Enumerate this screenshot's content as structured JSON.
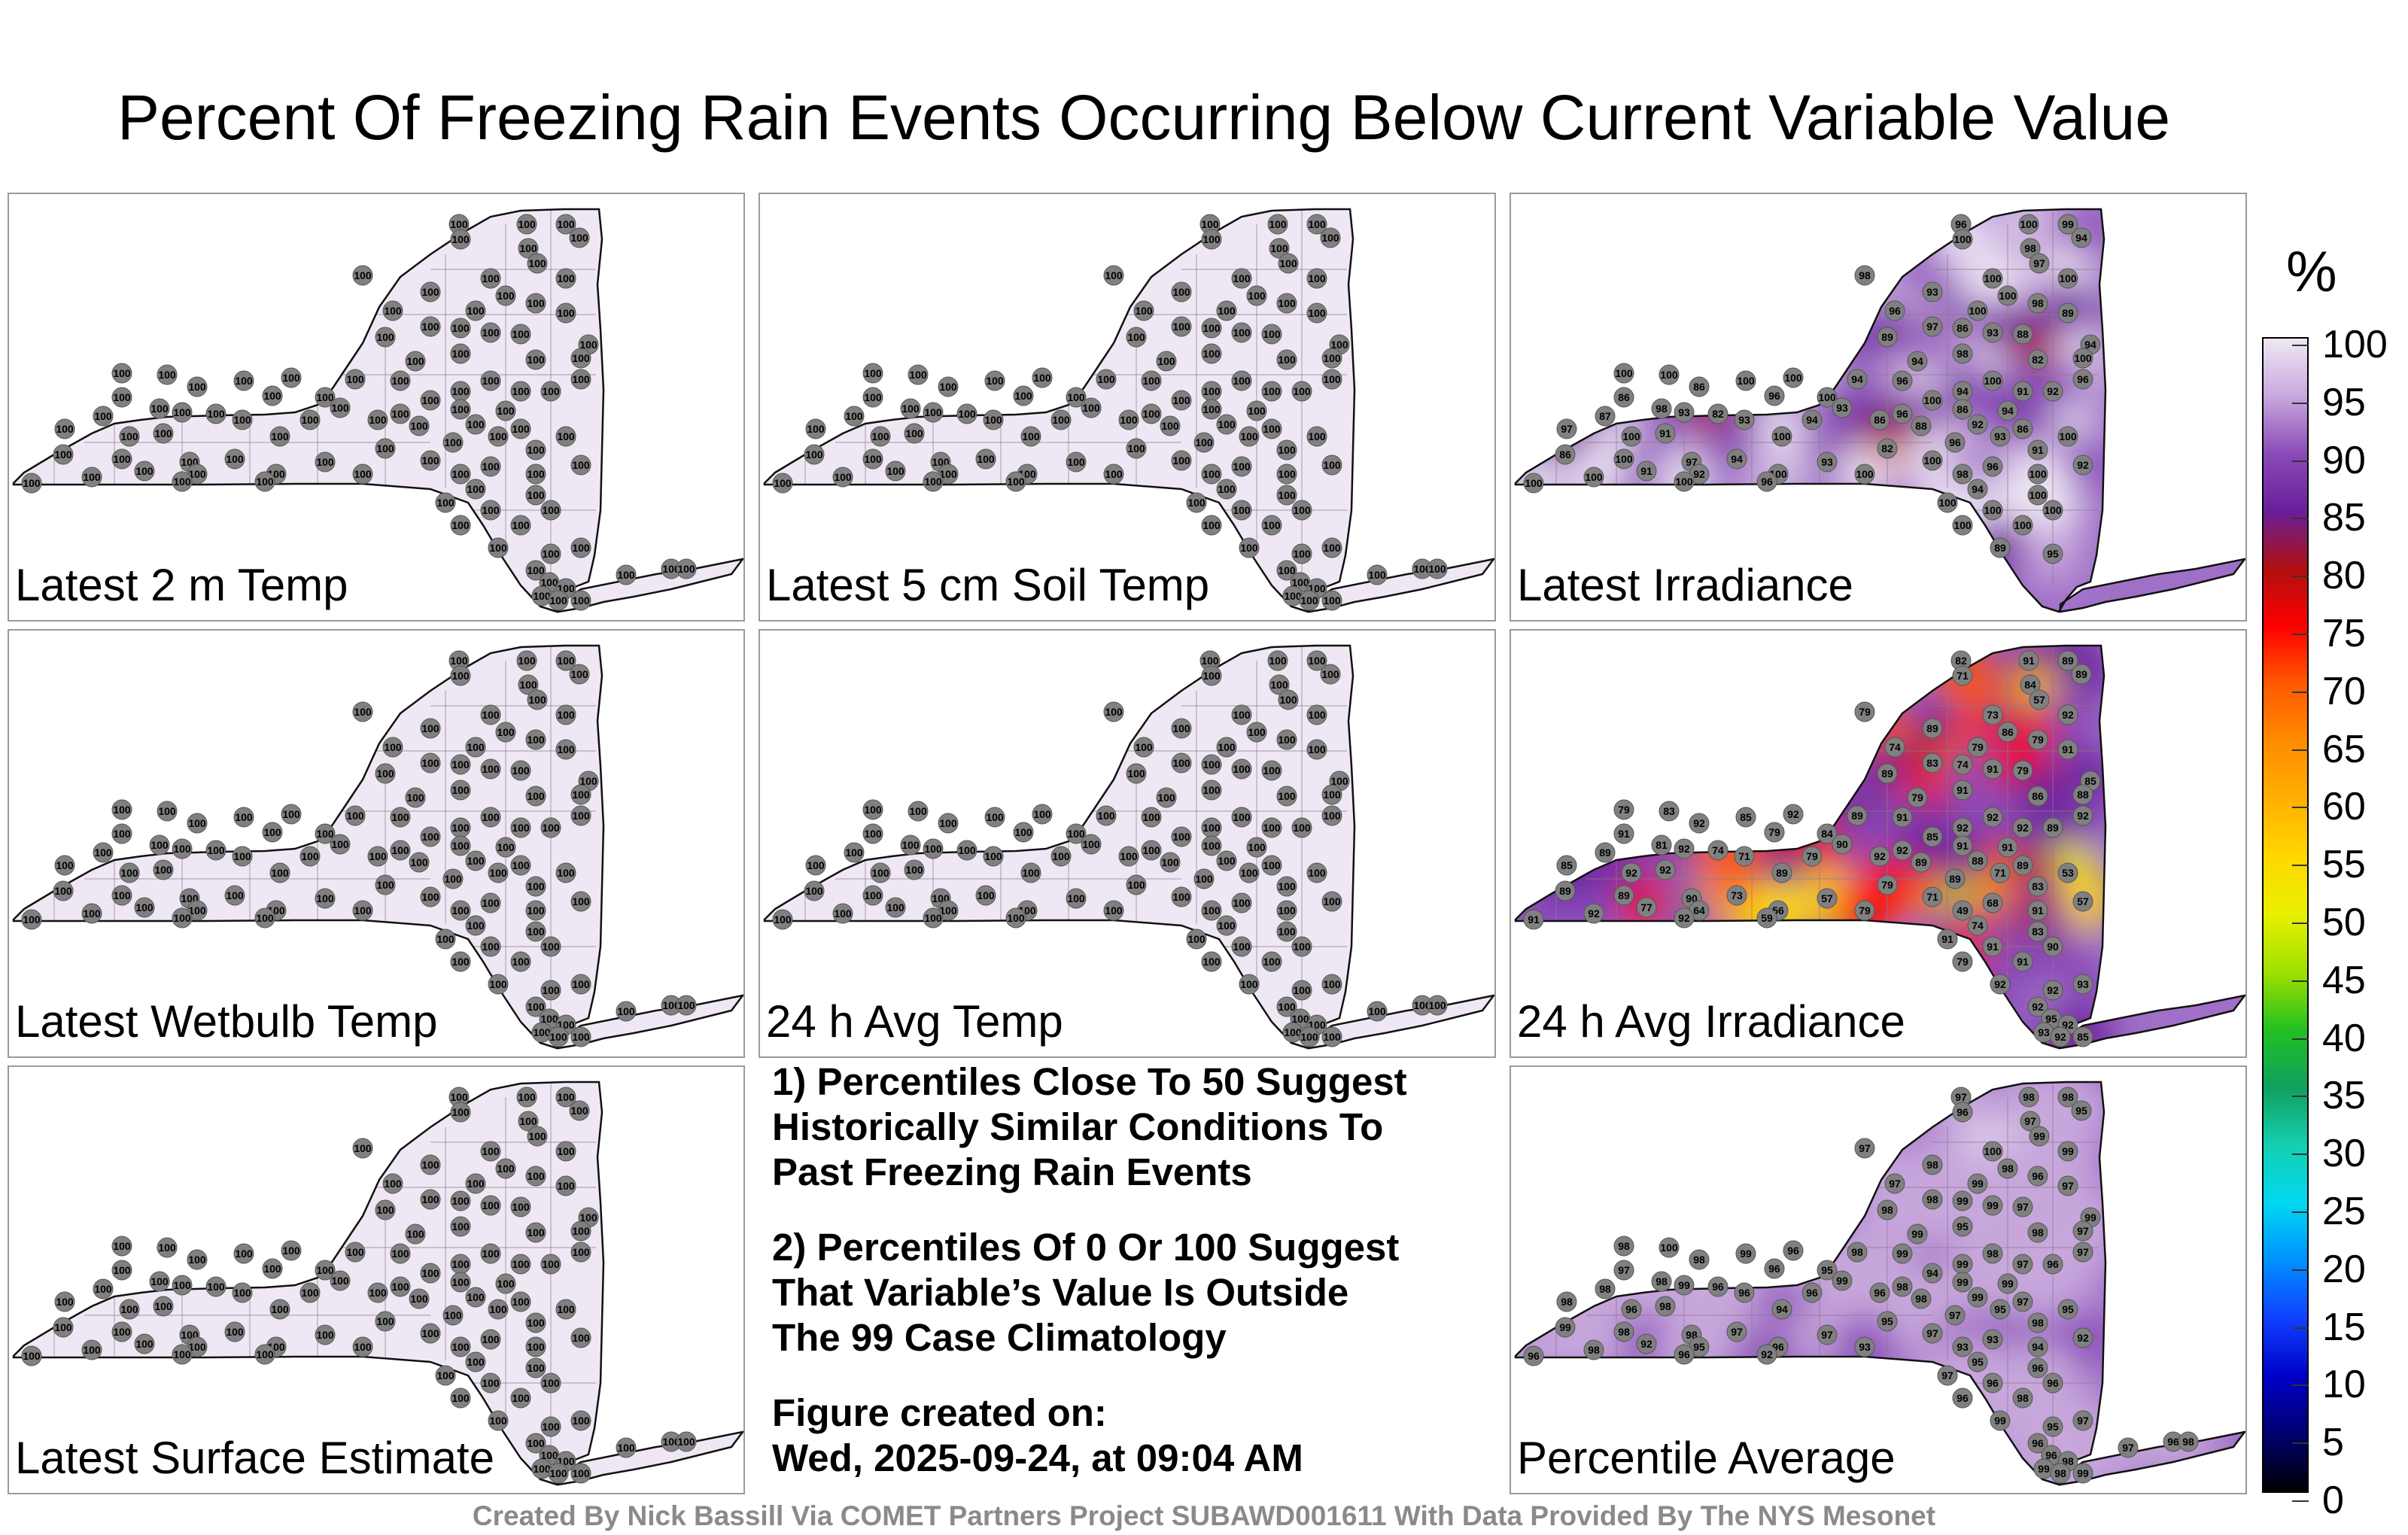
{
  "title": "Percent Of Freezing Rain Events Occurring Below Current Variable Value",
  "panels": [
    {
      "id": "p1",
      "label": "Latest 2 m Temp",
      "uniform": true,
      "value": "100"
    },
    {
      "id": "p2",
      "label": "Latest 5 cm Soil Temp",
      "uniform": true,
      "value": "100"
    },
    {
      "id": "p3",
      "label": "Latest Irradiance",
      "uniform": false,
      "values": [
        "96",
        "100",
        "99",
        "94",
        "100",
        "98",
        "98",
        "97",
        "100",
        "100",
        "93",
        "100",
        "98",
        "100",
        "96",
        "89",
        "97",
        "86",
        "89",
        "93",
        "88",
        "94",
        "100",
        "100",
        "100",
        "98",
        "82",
        "94",
        "100",
        "94",
        "100",
        "96",
        "100",
        "96",
        "94",
        "91",
        "86",
        "86",
        "96",
        "100",
        "100",
        "92",
        "98",
        "93",
        "93",
        "96",
        "86",
        "94",
        "87",
        "82",
        "93",
        "94",
        "86",
        "88",
        "92",
        "86",
        "97",
        "100",
        "91",
        "100",
        "93",
        "100",
        "82",
        "96",
        "91",
        "86",
        "100",
        "97",
        "94",
        "93",
        "100",
        "96",
        "92",
        "91",
        "92",
        "100",
        "100",
        "98",
        "100",
        "100",
        "100",
        "100",
        "96",
        "94",
        "100",
        "100",
        "100",
        "100",
        "100",
        "100",
        "89",
        "95"
      ]
    },
    {
      "id": "p4",
      "label": "Latest Wetbulb Temp",
      "uniform": true,
      "value": "100"
    },
    {
      "id": "p5",
      "label": "24 h Avg Temp",
      "uniform": true,
      "value": "100"
    },
    {
      "id": "p6",
      "label": "24 h Avg Irradiance",
      "uniform": false,
      "values": [
        "82",
        "91",
        "89",
        "89",
        "71",
        "84",
        "79",
        "57",
        "73",
        "92",
        "89",
        "86",
        "79",
        "79",
        "74",
        "91",
        "83",
        "74",
        "89",
        "91",
        "79",
        "85",
        "79",
        "83",
        "92",
        "91",
        "86",
        "79",
        "88",
        "89",
        "85",
        "91",
        "92",
        "92",
        "92",
        "92",
        "92",
        "91",
        "79",
        "84",
        "85",
        "89",
        "81",
        "92",
        "90",
        "92",
        "91",
        "91",
        "89",
        "74",
        "71",
        "79",
        "92",
        "89",
        "88",
        "89",
        "85",
        "92",
        "92",
        "89",
        "71",
        "53",
        "79",
        "89",
        "83",
        "89",
        "89",
        "90",
        "73",
        "57",
        "71",
        "68",
        "57",
        "77",
        "64",
        "56",
        "79",
        "49",
        "91",
        "91",
        "92",
        "92",
        "59",
        "74",
        "83",
        "91",
        "91",
        "90",
        "79",
        "91",
        "92",
        "92",
        "93",
        "92",
        "95",
        "92",
        "93",
        "92",
        "85"
      ]
    },
    {
      "id": "p7",
      "label": "Latest Surface Estimate",
      "uniform": true,
      "value": "100"
    },
    {
      "id": "p9",
      "label": "Percentile Average",
      "uniform": false,
      "values": [
        "97",
        "98",
        "98",
        "95",
        "96",
        "97",
        "97",
        "99",
        "100",
        "99",
        "98",
        "98",
        "96",
        "99",
        "97",
        "97",
        "98",
        "99",
        "98",
        "99",
        "97",
        "99",
        "98",
        "100",
        "96",
        "95",
        "98",
        "99",
        "97",
        "98",
        "99",
        "99",
        "98",
        "97",
        "99",
        "97",
        "98",
        "97",
        "96",
        "95",
        "94",
        "96",
        "98",
        "99",
        "99",
        "98",
        "99",
        "99",
        "98",
        "96",
        "96",
        "96",
        "96",
        "98",
        "99",
        "97",
        "98",
        "96",
        "98",
        "94",
        "95",
        "95",
        "95",
        "97",
        "98",
        "99",
        "98",
        "98",
        "97",
        "97",
        "97",
        "93",
        "92",
        "92",
        "95",
        "96",
        "93",
        "93",
        "94",
        "96",
        "98",
        "96",
        "92",
        "95",
        "96",
        "97",
        "96",
        "96",
        "96",
        "98",
        "99",
        "95",
        "97",
        "96",
        "96",
        "98",
        "99",
        "98",
        "99",
        "97",
        "96",
        "98",
        "99",
        "99",
        "99"
      ]
    }
  ],
  "notes": {
    "n1_line1": "1) Percentiles Close To 50 Suggest",
    "n1_line2": "Historically Similar Conditions To",
    "n1_line3": "Past Freezing Rain Events",
    "n2_line1": "2) Percentiles Of 0 Or 100 Suggest",
    "n2_line2": "That Variable’s Value Is Outside",
    "n2_line3": "The 99 Case Climatology",
    "created_label": "Figure created on:",
    "created_value": "Wed, 2025-09-24, at 09:04 AM"
  },
  "colorbar": {
    "unit": "%",
    "ticks": [
      "100",
      "95",
      "90",
      "85",
      "80",
      "75",
      "70",
      "65",
      "60",
      "55",
      "50",
      "45",
      "40",
      "35",
      "30",
      "25",
      "20",
      "15",
      "10",
      "5",
      "0"
    ]
  },
  "footer": "Created By Nick Bassill Via COMET Partners Project SUBAWD001611 With Data Provided By The NYS Mesonet"
}
